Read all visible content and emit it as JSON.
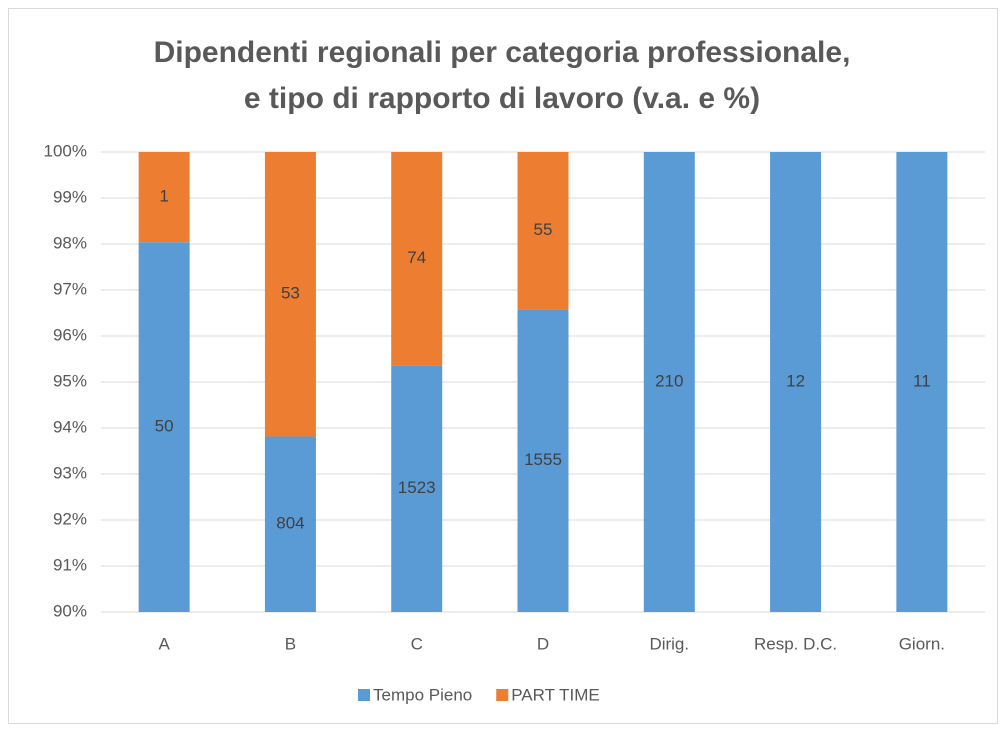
{
  "chart_data": {
    "type": "bar",
    "stacking": "percent",
    "title": "Dipendenti regionali per categoria professionale, e tipo di rapporto di lavoro (v.a. e %)",
    "categories": [
      "A",
      "B",
      "C",
      "D",
      "Dirig.",
      "Resp. D.C.",
      "Giorn."
    ],
    "series": [
      {
        "name": "Tempo Pieno",
        "color": "#5b9bd5",
        "values": [
          50,
          804,
          1523,
          1555,
          210,
          12,
          11
        ]
      },
      {
        "name": "PART TIME",
        "color": "#ed7d31",
        "values": [
          1,
          53,
          74,
          55,
          null,
          null,
          null
        ]
      }
    ],
    "ylim": [
      90,
      100
    ],
    "yticks": [
      {
        "value": 90,
        "label": "90%"
      },
      {
        "value": 91,
        "label": "91%"
      },
      {
        "value": 92,
        "label": "92%"
      },
      {
        "value": 93,
        "label": "93%"
      },
      {
        "value": 94,
        "label": "94%"
      },
      {
        "value": 95,
        "label": "95%"
      },
      {
        "value": 96,
        "label": "96%"
      },
      {
        "value": 97,
        "label": "97%"
      },
      {
        "value": 98,
        "label": "98%"
      },
      {
        "value": 99,
        "label": "99%"
      },
      {
        "value": 100,
        "label": "100%"
      }
    ],
    "grid": true,
    "legend": "bottom",
    "data_labels": true
  }
}
